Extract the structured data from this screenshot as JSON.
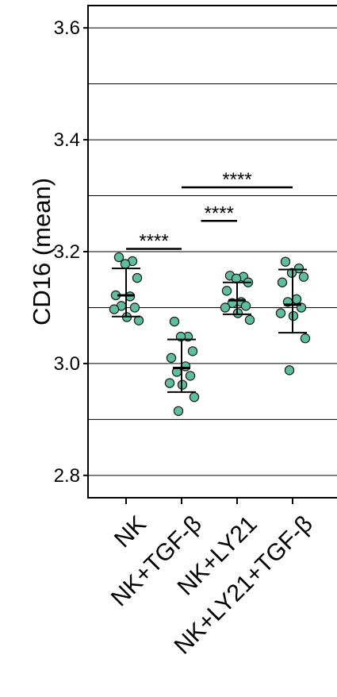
{
  "chart_data": {
    "type": "scatter",
    "ylabel": "CD16 (mean)",
    "ylim": [
      2.76,
      3.64
    ],
    "yticks": [
      2.8,
      3.0,
      3.2,
      3.4,
      3.6
    ],
    "ytick_labels": [
      "2.8",
      "3.0",
      "3.2",
      "3.4",
      "3.6"
    ],
    "gridlines": [
      2.8,
      2.9,
      3.0,
      3.1,
      3.2,
      3.3,
      3.4,
      3.5,
      3.6
    ],
    "grid": true,
    "categories": [
      "NK",
      "NK+TGF-β",
      "NK+LY21",
      "NK+LY21+TGF-β"
    ],
    "point_color": "#5fbf9c",
    "groups": [
      {
        "name": "NK",
        "mean": 3.122,
        "sd_low": 3.084,
        "sd_high": 3.17,
        "points": [
          3.19,
          3.183,
          3.178,
          3.153,
          3.122,
          3.12,
          3.103,
          3.1,
          3.097,
          3.083,
          3.077
        ]
      },
      {
        "name": "NK+TGF-β",
        "mean": 2.992,
        "sd_low": 2.949,
        "sd_high": 3.043,
        "points": [
          3.075,
          3.048,
          3.048,
          3.022,
          3.01,
          2.995,
          2.985,
          2.978,
          2.965,
          2.962,
          2.94,
          2.915
        ]
      },
      {
        "name": "NK+LY21",
        "mean": 3.113,
        "sd_low": 3.088,
        "sd_high": 3.145,
        "points": [
          3.157,
          3.155,
          3.152,
          3.145,
          3.13,
          3.11,
          3.108,
          3.103,
          3.1,
          3.09,
          3.078
        ]
      },
      {
        "name": "NK+LY21+TGF-β",
        "mean": 3.105,
        "sd_low": 3.055,
        "sd_high": 3.168,
        "points": [
          3.182,
          3.17,
          3.162,
          3.155,
          3.145,
          3.115,
          3.11,
          3.1,
          3.09,
          3.085,
          3.045,
          2.988
        ]
      }
    ],
    "significance": [
      {
        "from": 0,
        "to": 1,
        "y": 3.205,
        "label": "****"
      },
      {
        "from": 1.35,
        "to": 2,
        "y": 3.255,
        "label": "****"
      },
      {
        "from": 1.0,
        "to": 3,
        "y": 3.315,
        "label": "****"
      }
    ]
  }
}
